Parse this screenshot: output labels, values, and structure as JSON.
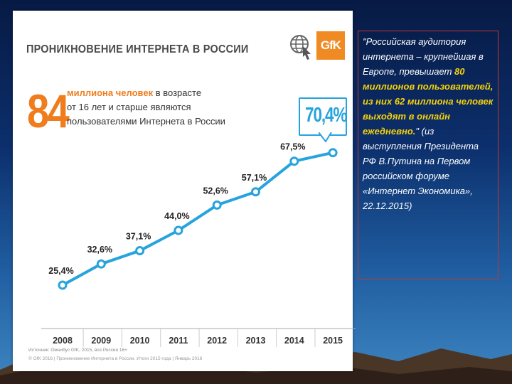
{
  "slide": {
    "title": "ПРОНИКНОВЕНИЕ ИНТЕРНЕТА В РОССИИ",
    "big_number": "84",
    "subtitle_line1_highlight": "миллиона человек",
    "subtitle_line1_rest": " в возрасте",
    "subtitle_line2": "от 16 лет и старше являются",
    "subtitle_line3": "пользователями Интернета в России",
    "callout_value": "70,4%",
    "logo_text": "GfK",
    "source_text": "Источник: Омнибус GfK, 2015, вся Россия 16+",
    "copyright_text": "© GfK 2016 | Проникновение Интернета в России. Итоги 2015 года | Январь 2016"
  },
  "quote": {
    "part1": "\"Российская аудитория интернета – крупнейшая в Европе, превышает ",
    "part2_highlight": "80 миллионов пользователей, из них 62 миллиона человек выходят в онлайн ежедневно.",
    "part3": "\" (из выступления Президента РФ В.Путина на Первом российском форуме «Интернет Экономика», 22.12.2015)"
  },
  "chart_data": {
    "type": "line",
    "x": [
      "2008",
      "2009",
      "2010",
      "2011",
      "2012",
      "2013",
      "2014",
      "2015"
    ],
    "values": [
      25.4,
      32.6,
      37.1,
      44.0,
      52.6,
      57.1,
      67.5,
      70.4
    ],
    "labels": [
      "25,4%",
      "32,6%",
      "37,1%",
      "44,0%",
      "52,6%",
      "57,1%",
      "67,5%",
      ""
    ],
    "title": "ПРОНИКНОВЕНИЕ ИНТЕРНЕТА В РОССИИ",
    "xlabel": "",
    "ylabel": "",
    "grid": false,
    "line_color": "#27a3dd"
  },
  "colors": {
    "accent_orange": "#ef7d1d",
    "line_blue": "#27a3dd",
    "quote_highlight": "#f5d10a"
  }
}
